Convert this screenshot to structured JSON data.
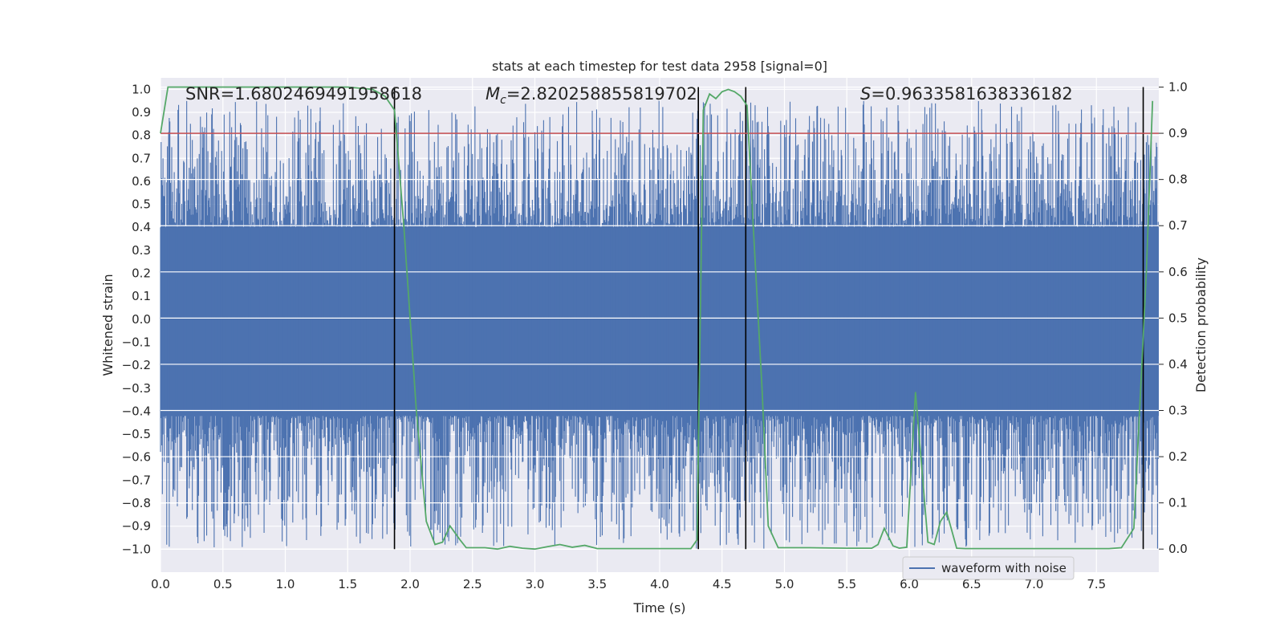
{
  "chart_data": {
    "type": "line",
    "title": "stats at each timestep for test data 2958 [signal=0]",
    "xlabel": "Time (s)",
    "ylabel_left": "Whitened strain",
    "ylabel_right": "Detection probability",
    "xlim": [
      0.0,
      8.0
    ],
    "ylim_left": [
      -1.1,
      1.05
    ],
    "ylim_right": [
      -0.05,
      1.02
    ],
    "xticks": [
      "0.0",
      "0.5",
      "1.0",
      "1.5",
      "2.0",
      "2.5",
      "3.0",
      "3.5",
      "4.0",
      "4.5",
      "5.0",
      "5.5",
      "6.0",
      "6.5",
      "7.0",
      "7.5"
    ],
    "yticks_left": [
      "1.0",
      "0.9",
      "0.8",
      "0.7",
      "0.6",
      "0.5",
      "0.4",
      "0.3",
      "0.2",
      "0.1",
      "0.0",
      "-0.1",
      "-0.2",
      "-0.3",
      "-0.4",
      "-0.5",
      "-0.6",
      "-0.7",
      "-0.8",
      "-0.9",
      "-1.0"
    ],
    "yticks_right": [
      "1.0",
      "0.9",
      "0.8",
      "0.7",
      "0.6",
      "0.5",
      "0.4",
      "0.3",
      "0.2",
      "0.1",
      "0.0"
    ],
    "annotations": {
      "snr": "SNR=1.6802469491958618",
      "mc_symbol": "M",
      "mc_sub": "c",
      "mc_value": "=2.820258855819702",
      "s_symbol": "S",
      "s_value": "=0.9633581638336182"
    },
    "threshold": 0.9,
    "vertical_lines": [
      1.875,
      4.31,
      4.69,
      7.875
    ],
    "waveform": {
      "name": "waveform with noise",
      "color": "#4c72b0",
      "t_start": 0.0,
      "t_end": 8.0,
      "envelope_upper": 0.4,
      "envelope_lower": -0.42,
      "peak_max": 0.95,
      "peak_min": -1.0
    },
    "probability": {
      "color": "#55a868",
      "t": [
        0.0,
        0.06,
        0.2,
        0.5,
        1.0,
        1.5,
        1.7,
        1.8,
        1.875,
        1.95,
        2.05,
        2.13,
        2.2,
        2.26,
        2.32,
        2.4,
        2.45,
        2.6,
        2.7,
        2.8,
        2.9,
        3.0,
        3.1,
        3.2,
        3.3,
        3.4,
        3.5,
        3.8,
        4.1,
        4.25,
        4.3,
        4.35,
        4.4,
        4.45,
        4.5,
        4.55,
        4.6,
        4.65,
        4.7,
        4.75,
        4.82,
        4.87,
        4.95,
        5.0,
        5.2,
        5.5,
        5.7,
        5.75,
        5.8,
        5.87,
        5.92,
        5.98,
        6.05,
        6.15,
        6.2,
        6.25,
        6.3,
        6.38,
        6.45,
        6.5,
        6.6,
        6.8,
        7.1,
        7.3,
        7.5,
        7.6,
        7.7,
        7.8,
        7.9,
        7.95
      ],
      "values": [
        0.9,
        1.0,
        1.0,
        1.0,
        1.0,
        1.0,
        0.995,
        0.98,
        0.95,
        0.7,
        0.3,
        0.06,
        0.01,
        0.015,
        0.05,
        0.02,
        0.003,
        0.003,
        0.0,
        0.006,
        0.002,
        0.0,
        0.005,
        0.01,
        0.004,
        0.008,
        0.001,
        0.001,
        0.001,
        0.001,
        0.02,
        0.95,
        0.985,
        0.975,
        0.99,
        0.995,
        0.99,
        0.98,
        0.96,
        0.7,
        0.35,
        0.05,
        0.003,
        0.003,
        0.003,
        0.002,
        0.002,
        0.01,
        0.045,
        0.007,
        0.002,
        0.004,
        0.34,
        0.015,
        0.01,
        0.06,
        0.08,
        0.002,
        0.001,
        0.001,
        0.001,
        0.001,
        0.001,
        0.001,
        0.001,
        0.001,
        0.003,
        0.045,
        0.6,
        0.97
      ]
    },
    "legend": {
      "entry": "waveform with noise",
      "location": "lower-right"
    }
  }
}
